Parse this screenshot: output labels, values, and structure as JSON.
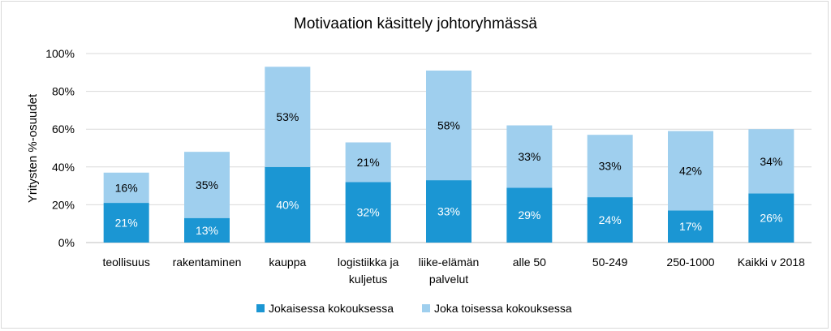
{
  "chart_data": {
    "type": "bar",
    "stacked": true,
    "title": "Motivaation käsittely johtoryhmässä",
    "ylabel": "Yritysten %-osuudet",
    "xlabel": "",
    "ylim": [
      0,
      100
    ],
    "yticks": [
      "0%",
      "20%",
      "40%",
      "60%",
      "80%",
      "100%"
    ],
    "grid": true,
    "legend_position": "bottom",
    "categories": [
      [
        "teollisuus"
      ],
      [
        "rakentaminen"
      ],
      [
        "kauppa"
      ],
      [
        "logistiikka ja",
        "kuljetus"
      ],
      [
        "liike-elämän",
        "palvelut"
      ],
      [
        "alle 50"
      ],
      [
        "50-249"
      ],
      [
        "250-1000"
      ],
      [
        "Kaikki v 2018"
      ]
    ],
    "series": [
      {
        "name": "Jokaisessa kokouksessa",
        "color": "#1b96d3",
        "label_color": "#ffffff",
        "values": [
          21,
          13,
          40,
          32,
          33,
          29,
          24,
          17,
          26
        ],
        "labels": [
          "21%",
          "13%",
          "40%",
          "32%",
          "33%",
          "29%",
          "24%",
          "17%",
          "26%"
        ]
      },
      {
        "name": "Joka toisessa kokouksessa",
        "color": "#9fcfee",
        "label_color": "#000000",
        "values": [
          16,
          35,
          53,
          21,
          58,
          33,
          33,
          42,
          34
        ],
        "labels": [
          "16%",
          "35%",
          "53%",
          "21%",
          "58%",
          "33%",
          "33%",
          "42%",
          "34%"
        ]
      }
    ]
  }
}
